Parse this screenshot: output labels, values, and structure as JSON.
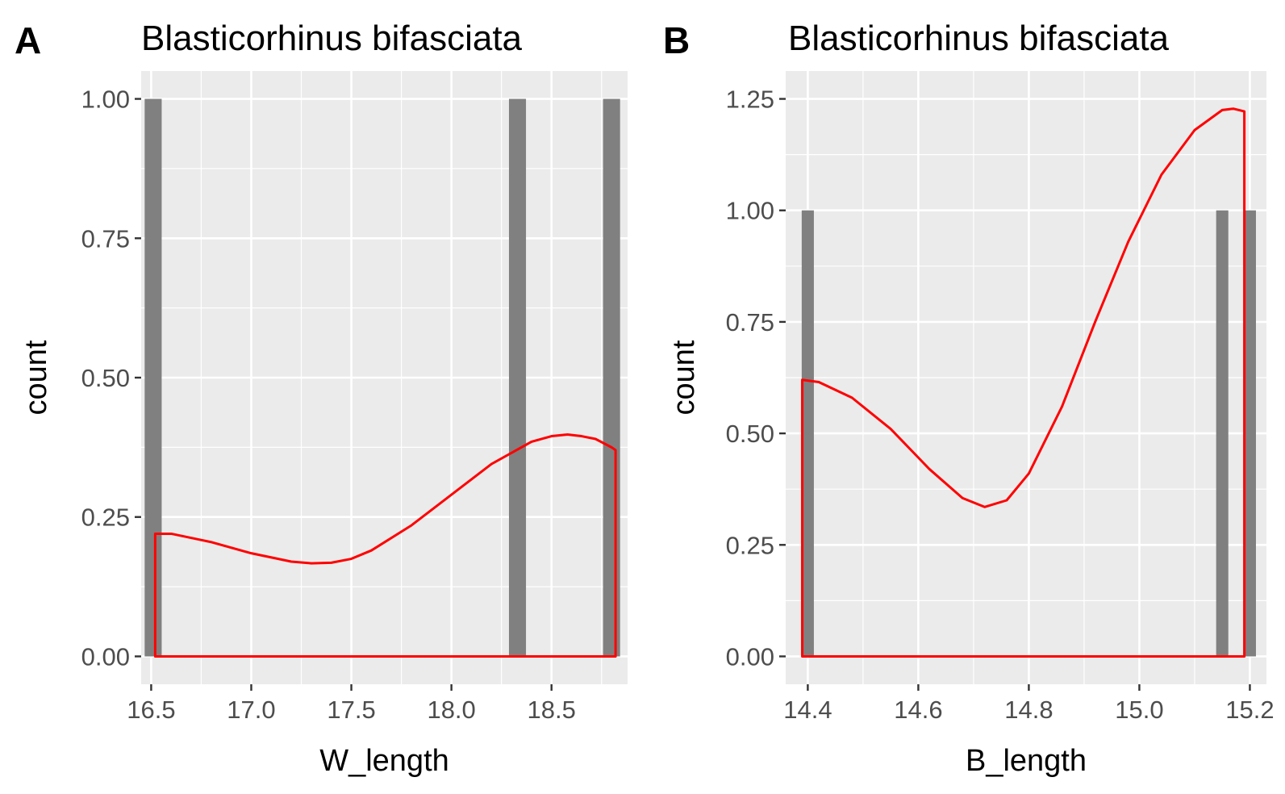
{
  "colors": {
    "panel_bg": "#EBEBEB",
    "grid": "#FFFFFF",
    "bar": "#808080",
    "density": "#FF0000",
    "tick_text": "#4D4D4D"
  },
  "chart_data": [
    {
      "type": "bar",
      "tag": "A",
      "title": "Blasticorhinus bifasciata",
      "xlabel": "W_length",
      "ylabel": "count",
      "xlim": [
        16.45,
        18.88
      ],
      "ylim": [
        -0.05,
        1.05
      ],
      "x_ticks": [
        16.5,
        17.0,
        17.5,
        18.0,
        18.5
      ],
      "x_tick_labels": [
        "16.5",
        "17.0",
        "17.5",
        "18.0",
        "18.5"
      ],
      "y_ticks": [
        0,
        0.25,
        0.5,
        0.75,
        1.0
      ],
      "y_tick_labels": [
        "0.00",
        "0.25",
        "0.50",
        "0.75",
        "1.00"
      ],
      "bar_width": 0.085,
      "bars": [
        {
          "x": 16.51,
          "count": 1
        },
        {
          "x": 18.33,
          "count": 1
        },
        {
          "x": 18.8,
          "count": 1
        }
      ],
      "density": {
        "x": [
          16.52,
          16.6,
          16.8,
          17.0,
          17.2,
          17.3,
          17.4,
          17.5,
          17.6,
          17.8,
          18.0,
          18.2,
          18.4,
          18.5,
          18.58,
          18.65,
          18.72,
          18.8,
          18.82
        ],
        "y": [
          0.22,
          0.22,
          0.205,
          0.185,
          0.17,
          0.167,
          0.168,
          0.175,
          0.19,
          0.235,
          0.29,
          0.345,
          0.385,
          0.395,
          0.398,
          0.395,
          0.39,
          0.375,
          0.37
        ]
      }
    },
    {
      "type": "bar",
      "tag": "B",
      "title": "Blasticorhinus bifasciata",
      "xlabel": "B_length",
      "ylabel": "count",
      "xlim": [
        14.36,
        15.23
      ],
      "ylim": [
        -0.0625,
        1.3125
      ],
      "x_ticks": [
        14.4,
        14.6,
        14.8,
        15.0,
        15.2
      ],
      "x_tick_labels": [
        "14.4",
        "14.6",
        "14.8",
        "15.0",
        "15.2"
      ],
      "y_ticks": [
        0,
        0.25,
        0.5,
        0.75,
        1.0,
        1.25
      ],
      "y_tick_labels": [
        "0.00",
        "0.25",
        "0.50",
        "0.75",
        "1.00",
        "1.25"
      ],
      "bar_width": 0.022,
      "bars": [
        {
          "x": 14.4,
          "count": 1
        },
        {
          "x": 15.15,
          "count": 1
        },
        {
          "x": 15.2,
          "count": 1
        }
      ],
      "density": {
        "x": [
          14.39,
          14.42,
          14.48,
          14.55,
          14.62,
          14.68,
          14.72,
          14.76,
          14.8,
          14.86,
          14.92,
          14.98,
          15.04,
          15.1,
          15.15,
          15.17,
          15.19
        ],
        "y": [
          0.62,
          0.615,
          0.58,
          0.51,
          0.42,
          0.355,
          0.335,
          0.35,
          0.41,
          0.56,
          0.75,
          0.93,
          1.08,
          1.18,
          1.225,
          1.228,
          1.222
        ]
      }
    }
  ]
}
